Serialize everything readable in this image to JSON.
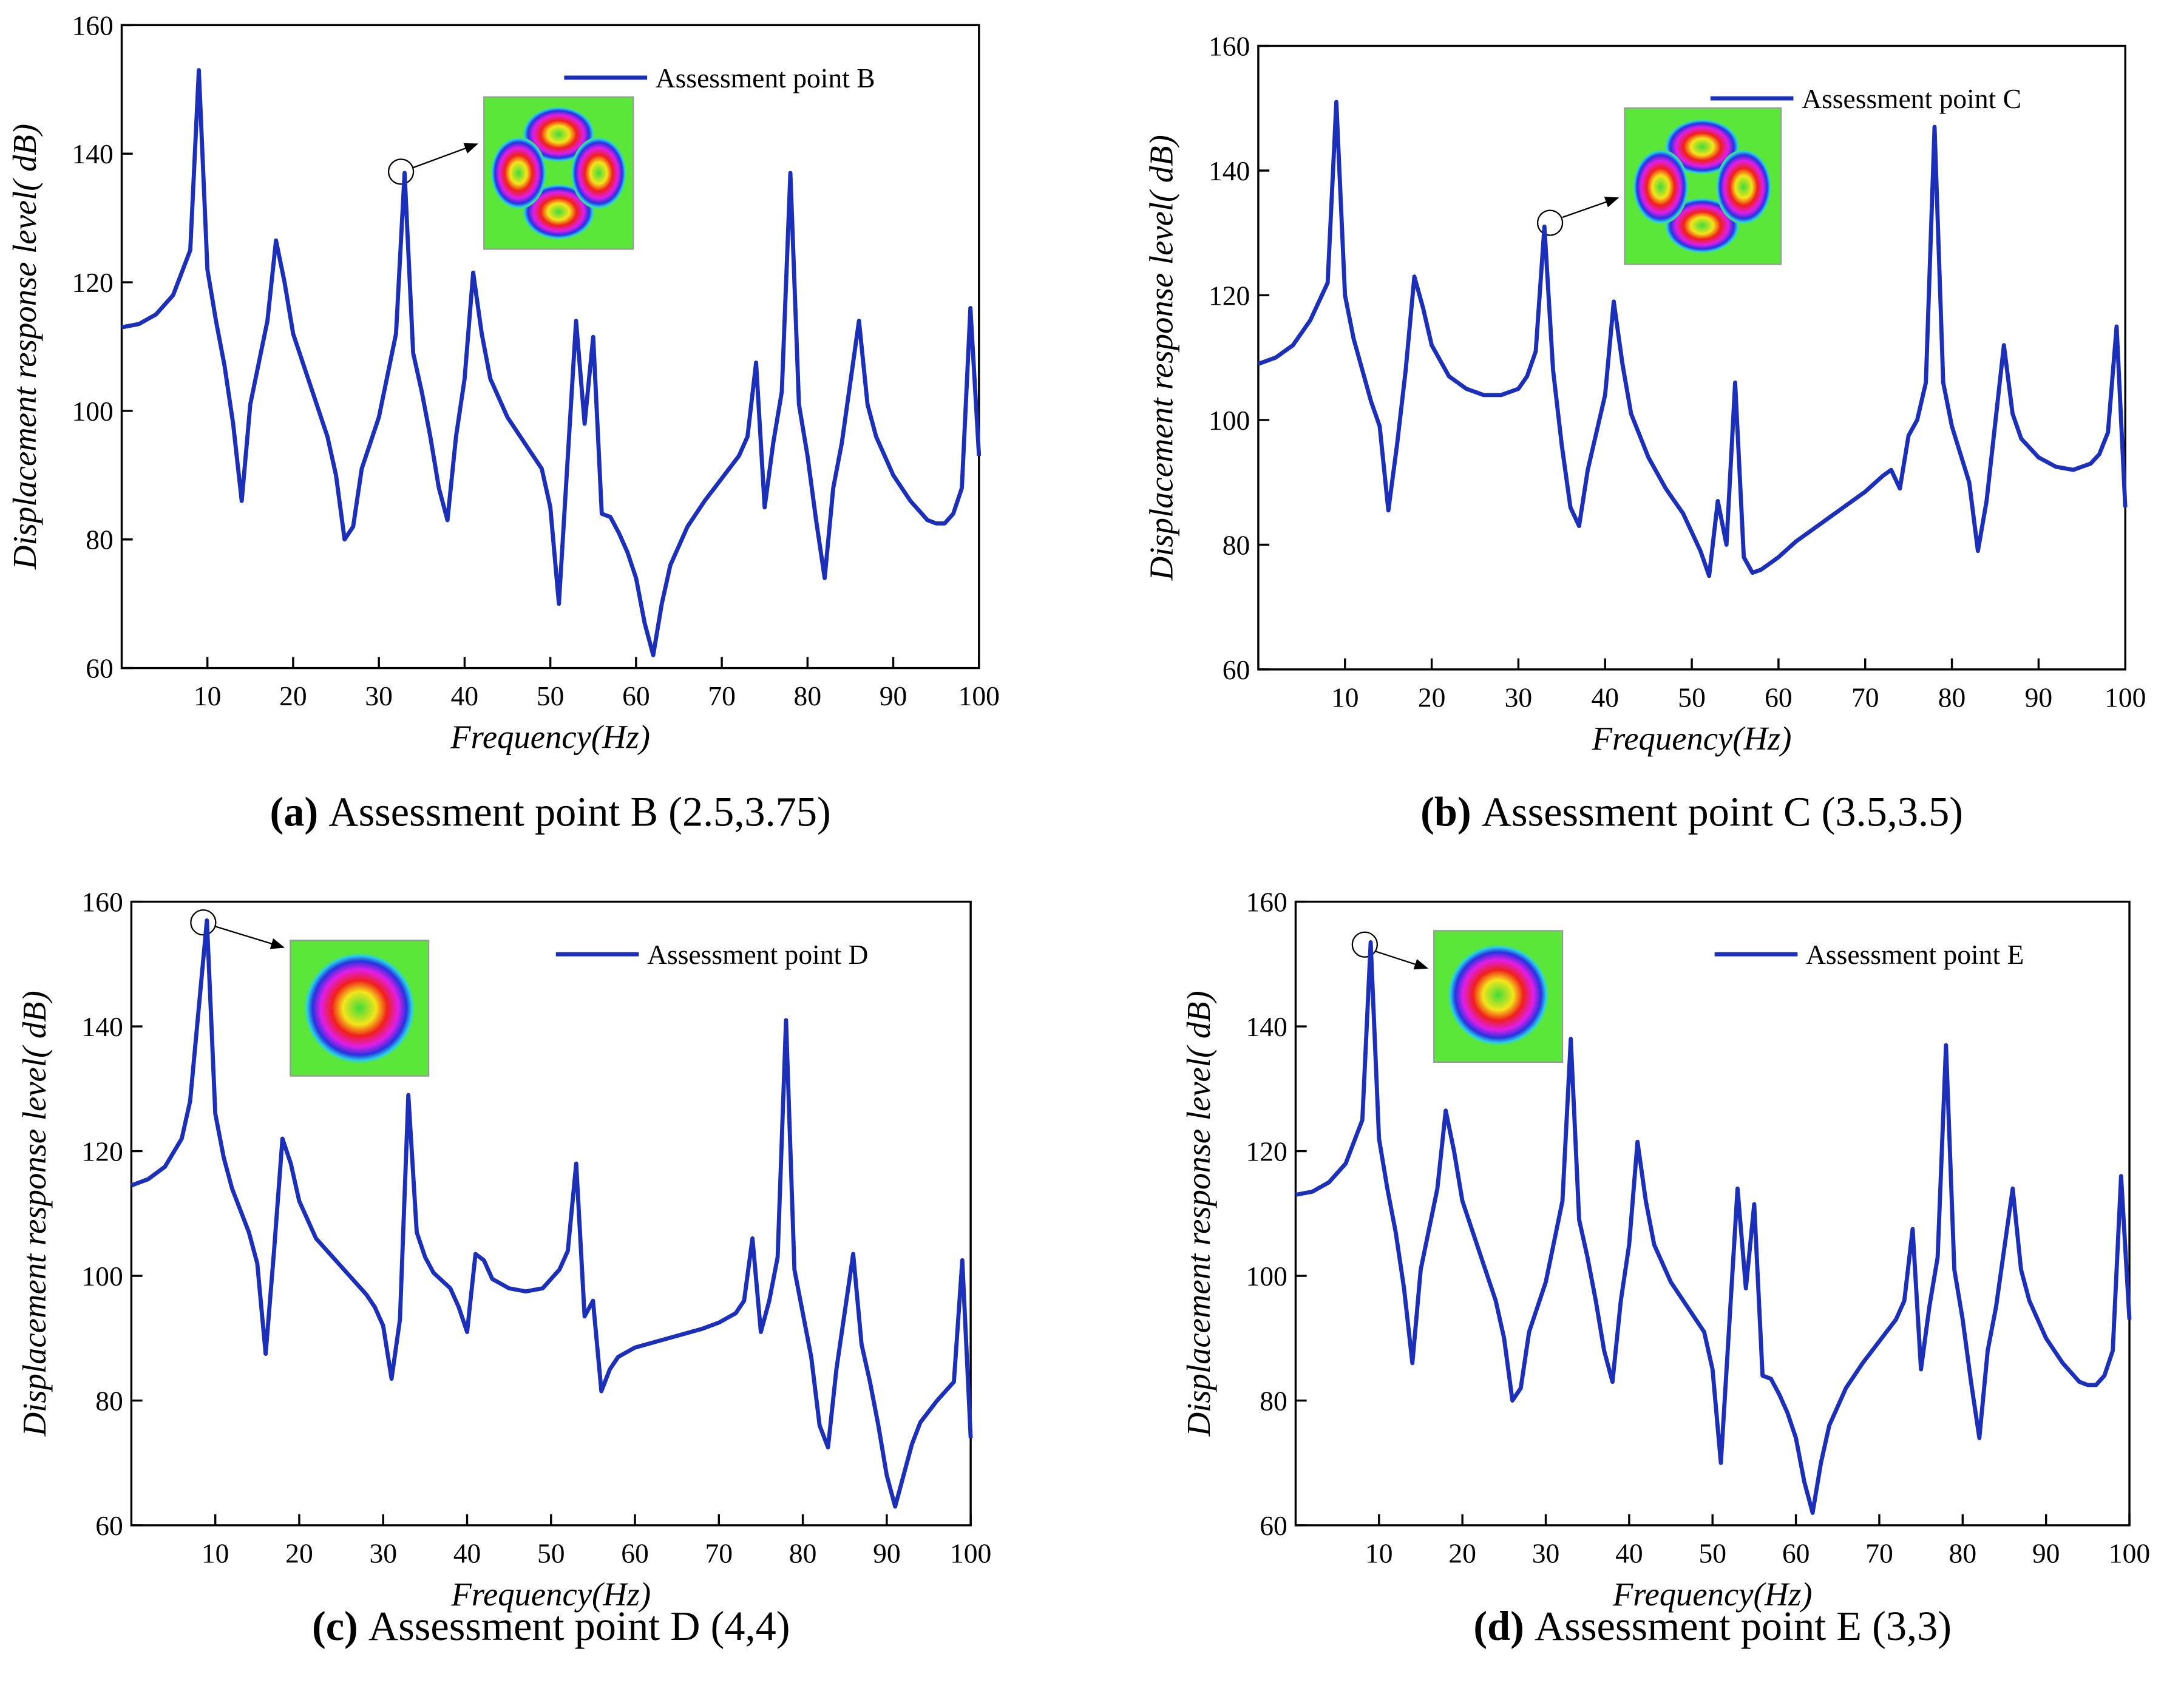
{
  "chart_data": [
    {
      "type": "line",
      "xlabel": "Frequency(Hz)",
      "ylabel": "Displacement  response level( dB)",
      "caption_label": "(a)",
      "caption": "Assessment point B (2.5,3.75)",
      "legend": "upper right",
      "xlim": [
        0,
        100
      ],
      "xticks": [
        10,
        20,
        30,
        40,
        50,
        60,
        70,
        80,
        90,
        100
      ],
      "ylim": [
        60,
        160
      ],
      "yticks": [
        60,
        80,
        100,
        120,
        140,
        160
      ],
      "x": [
        0,
        2,
        4,
        6,
        8,
        9,
        10,
        11,
        12,
        13,
        14,
        15,
        17,
        18,
        19,
        20,
        22,
        24,
        25,
        26,
        27,
        28,
        30,
        32,
        33,
        34,
        35,
        36,
        37,
        38,
        39,
        40,
        41,
        42,
        43,
        45,
        47,
        49,
        50,
        51,
        52,
        53,
        54,
        55,
        56,
        57,
        58,
        59,
        60,
        61,
        62,
        63,
        64,
        66,
        68,
        70,
        72,
        73,
        74,
        75,
        76,
        77,
        78,
        79,
        80,
        81,
        82,
        83,
        84,
        86,
        87,
        88,
        90,
        92,
        94,
        95,
        96,
        97,
        98,
        99,
        100
      ],
      "series": [
        {
          "name": "Assessment point B",
          "color": "#1b2fb8",
          "values": [
            113,
            113.5,
            115,
            118,
            125,
            153,
            122,
            114,
            107,
            98,
            86,
            101,
            114,
            126.5,
            120,
            112,
            104,
            96,
            90,
            80,
            82,
            91,
            99,
            112,
            137,
            109,
            103,
            96,
            88,
            83,
            96,
            105,
            121.5,
            112,
            105,
            99,
            95,
            91,
            85,
            70,
            92,
            114,
            98,
            111.5,
            84,
            83.5,
            81,
            78,
            74,
            67,
            62,
            70,
            76,
            82,
            86,
            89.5,
            93,
            96,
            107.5,
            85,
            95,
            103,
            137,
            101,
            93,
            83,
            74,
            88,
            95,
            114,
            101,
            96,
            90,
            86,
            83,
            82.5,
            82.5,
            84,
            88,
            116,
            93
          ]
        }
      ]
    },
    {
      "type": "line",
      "xlabel": "Frequency(Hz)",
      "ylabel": "Displacement  response level( dB)",
      "caption_label": "(b)",
      "caption": "Assessment point C (3.5,3.5)",
      "legend": "upper right",
      "xlim": [
        0,
        100
      ],
      "xticks": [
        10,
        20,
        30,
        40,
        50,
        60,
        70,
        80,
        90,
        100
      ],
      "ylim": [
        60,
        160
      ],
      "yticks": [
        60,
        80,
        100,
        120,
        140,
        160
      ],
      "x": [
        0,
        2,
        4,
        6,
        8,
        9,
        10,
        11,
        12,
        13,
        14,
        15,
        16,
        17,
        18,
        19,
        20,
        22,
        24,
        26,
        28,
        30,
        31,
        32,
        33,
        34,
        35,
        36,
        37,
        38,
        40,
        41,
        42,
        43,
        45,
        47,
        49,
        51,
        52,
        53,
        54,
        55,
        56,
        57,
        58,
        60,
        62,
        64,
        66,
        68,
        70,
        72,
        73,
        74,
        75,
        76,
        77,
        78,
        79,
        80,
        82,
        83,
        84,
        86,
        87,
        88,
        90,
        92,
        94,
        96,
        97,
        98,
        99,
        100
      ],
      "series": [
        {
          "name": "Assessment point C",
          "color": "#1b2fb8",
          "values": [
            109,
            110,
            112,
            116,
            122,
            151,
            120,
            113,
            108,
            103,
            99,
            85.5,
            96,
            108,
            123,
            118,
            112,
            107,
            105,
            104,
            104,
            105,
            107,
            111,
            131,
            108,
            96,
            86,
            83,
            92,
            104,
            119,
            109,
            101,
            94,
            89,
            85,
            79,
            75,
            87,
            80,
            106,
            78,
            75.5,
            76,
            78,
            80.5,
            82.5,
            84.5,
            86.5,
            88.5,
            91,
            92,
            89,
            97.5,
            100,
            106,
            147,
            106,
            99,
            90,
            79,
            87,
            112,
            101,
            97,
            94,
            92.5,
            92,
            93,
            94.5,
            98,
            115,
            86
          ]
        }
      ]
    },
    {
      "type": "line",
      "xlabel": "Frequency(Hz)",
      "ylabel": "Displacement  response level( dB)",
      "caption_label": "(c)",
      "caption": "Assessment point D (4,4)",
      "legend": "upper right",
      "xlim": [
        0,
        100
      ],
      "xticks": [
        10,
        20,
        30,
        40,
        50,
        60,
        70,
        80,
        90,
        100
      ],
      "ylim": [
        60,
        160
      ],
      "yticks": [
        60,
        80,
        100,
        120,
        140,
        160
      ],
      "x": [
        0,
        2,
        4,
        6,
        7,
        9,
        10,
        11,
        12,
        14,
        15,
        16,
        17,
        18,
        19,
        20,
        22,
        24,
        26,
        28,
        29,
        30,
        31,
        32,
        33,
        34,
        35,
        36,
        38,
        39,
        40,
        41,
        42,
        43,
        45,
        47,
        49,
        51,
        52,
        53,
        54,
        55,
        56,
        57,
        58,
        60,
        64,
        68,
        70,
        72,
        73,
        74,
        75,
        76,
        77,
        78,
        79,
        80,
        81,
        82,
        83,
        84,
        86,
        87,
        88,
        89,
        90,
        91,
        92,
        93,
        94,
        96,
        98,
        99,
        100
      ],
      "series": [
        {
          "name": "Assessment point D",
          "color": "#1b2fb8",
          "values": [
            114.5,
            115.5,
            117.5,
            122,
            128,
            157,
            126,
            119,
            114,
            107,
            102,
            87.5,
            104,
            122,
            118,
            112,
            106,
            103,
            100,
            97,
            95,
            92,
            83.5,
            93,
            129,
            107,
            103,
            100.5,
            98,
            95,
            91,
            103.5,
            102.5,
            99.5,
            98,
            97.5,
            98,
            101,
            104,
            118,
            93.5,
            96,
            81.5,
            85,
            87,
            88.5,
            90,
            91.5,
            92.5,
            94,
            96,
            106,
            91,
            96,
            103,
            141,
            101,
            94,
            87,
            76,
            72.5,
            85,
            103.5,
            89,
            83,
            76,
            68,
            63,
            68,
            73,
            76.5,
            80,
            83,
            102.5,
            74
          ]
        }
      ]
    },
    {
      "type": "line",
      "xlabel": "Frequency(Hz)",
      "ylabel": "Displacement  response level( dB)",
      "caption_label": "(d)",
      "caption": "Assessment point E (3,3)",
      "legend": "upper right",
      "xlim": [
        0,
        100
      ],
      "xticks": [
        10,
        20,
        30,
        40,
        50,
        60,
        70,
        80,
        90,
        100
      ],
      "ylim": [
        60,
        160
      ],
      "yticks": [
        60,
        80,
        100,
        120,
        140,
        160
      ],
      "x": [
        0,
        2,
        4,
        6,
        8,
        9,
        10,
        11,
        12,
        13,
        14,
        15,
        17,
        18,
        19,
        20,
        22,
        24,
        25,
        26,
        27,
        28,
        30,
        32,
        33,
        34,
        35,
        36,
        37,
        38,
        39,
        40,
        41,
        42,
        43,
        45,
        47,
        49,
        50,
        51,
        52,
        53,
        54,
        55,
        56,
        57,
        58,
        59,
        60,
        61,
        62,
        63,
        64,
        66,
        68,
        70,
        72,
        73,
        74,
        75,
        76,
        77,
        78,
        79,
        80,
        81,
        82,
        83,
        84,
        86,
        87,
        88,
        90,
        92,
        94,
        95,
        96,
        97,
        98,
        99,
        100
      ],
      "series": [
        {
          "name": "Assessment point E",
          "color": "#1b2fb8",
          "values": [
            113,
            113.5,
            115,
            118,
            125,
            153.5,
            122,
            114,
            107,
            98,
            86,
            101,
            114,
            126.5,
            120,
            112,
            104,
            96,
            90,
            80,
            82,
            91,
            99,
            112,
            138,
            109,
            103,
            96,
            88,
            83,
            96,
            105,
            121.5,
            112,
            105,
            99,
            95,
            91,
            85,
            70,
            92,
            114,
            98,
            111.5,
            84,
            83.5,
            81,
            78,
            74,
            67,
            62,
            70,
            76,
            82,
            86,
            89.5,
            93,
            96,
            107.5,
            85,
            95,
            103,
            137,
            101,
            93,
            83,
            74,
            88,
            95,
            114,
            101,
            96,
            90,
            86,
            83,
            82.5,
            82.5,
            84,
            88,
            116,
            93
          ]
        }
      ]
    }
  ]
}
